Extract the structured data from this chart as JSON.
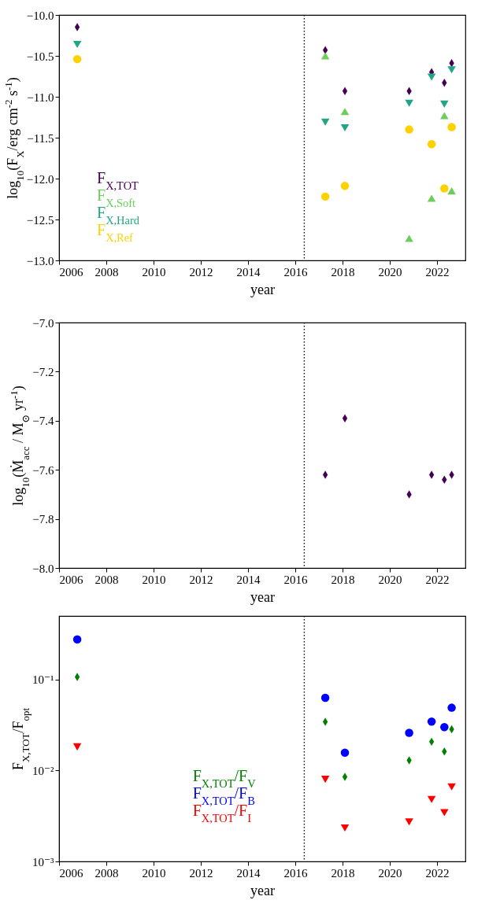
{
  "chart_data": [
    {
      "type": "scatter",
      "xlabel": "year",
      "ylabel": "log$_{10}$(F$_{X}$/erg cm$^{-2}$ s$^{-1}$)",
      "xlim": [
        2006,
        2023.2
      ],
      "ylim": [
        -13,
        -10
      ],
      "xticks": [
        2006,
        2008,
        2010,
        2012,
        2014,
        2016,
        2018,
        2020,
        2022
      ],
      "yticks": [
        {
          "value": -13,
          "label": "−13.0"
        },
        {
          "value": -12.5,
          "label": "−12.5"
        },
        {
          "value": -12,
          "label": "−12.0"
        },
        {
          "value": -11.5,
          "label": "−11.5"
        },
        {
          "value": -11,
          "label": "−11.0"
        },
        {
          "value": -10.5,
          "label": "−10.5"
        },
        {
          "value": -10,
          "label": "−10.0"
        }
      ],
      "legend": "bottom left",
      "ref_lines": [
        {
          "axis": "x",
          "value": 2016.38,
          "color": "#000000",
          "line_style": "dotted"
        }
      ],
      "series": [
        {
          "name": "F$_{X,TOT}$",
          "color": "#440154",
          "marker": "diamond",
          "x": [
            2006.77,
            2017.27,
            2018.1,
            2020.82,
            2021.77,
            2022.31,
            2022.62
          ],
          "values": [
            -10.15,
            -10.43,
            -10.93,
            -10.93,
            -10.7,
            -10.83,
            -10.59
          ]
        },
        {
          "name": "F$_{X,Soft}$",
          "color": "#6ccd5a",
          "marker": "triangle-up",
          "x": [
            2017.27,
            2018.1,
            2020.82,
            2021.77,
            2022.31,
            2022.62
          ],
          "values": [
            -10.5,
            -11.18,
            -12.73,
            -12.24,
            -11.23,
            -12.15
          ]
        },
        {
          "name": "F$_{X,Hard}$",
          "color": "#21a585",
          "marker": "triangle-down",
          "x": [
            2006.77,
            2017.27,
            2018.1,
            2020.82,
            2021.77,
            2022.31,
            2022.62
          ],
          "values": [
            -10.36,
            -11.31,
            -11.38,
            -11.08,
            -10.76,
            -11.09,
            -10.67
          ]
        },
        {
          "name": "F$_{X,Ref}$",
          "color": "#fed100",
          "marker": "circle",
          "x": [
            2006.77,
            2017.27,
            2018.1,
            2020.82,
            2021.77,
            2022.31,
            2022.62
          ],
          "values": [
            -10.54,
            -12.22,
            -12.09,
            -11.4,
            -11.58,
            -12.12,
            -11.37
          ]
        }
      ]
    },
    {
      "type": "scatter",
      "xlabel": "year",
      "ylabel": "log$_{10}$(Ṁ$_{acc}$ / M$_{⊙}$ yr$^{-1}$)",
      "xlim": [
        2006,
        2023.2
      ],
      "ylim": [
        -8,
        -7
      ],
      "xticks": [
        2006,
        2008,
        2010,
        2012,
        2014,
        2016,
        2018,
        2020,
        2022
      ],
      "yticks": [
        {
          "value": -8,
          "label": "−8.0"
        },
        {
          "value": -7.8,
          "label": "−7.8"
        },
        {
          "value": -7.6,
          "label": "−7.6"
        },
        {
          "value": -7.4,
          "label": "−7.4"
        },
        {
          "value": -7.2,
          "label": "−7.2"
        },
        {
          "value": -7,
          "label": "−7.0"
        }
      ],
      "ref_lines": [
        {
          "axis": "x",
          "value": 2016.38,
          "color": "#000000",
          "line_style": "dotted"
        }
      ],
      "series": [
        {
          "color": "#440154",
          "marker": "diamond",
          "x": [
            2017.27,
            2018.1,
            2020.82,
            2021.77,
            2022.31,
            2022.62
          ],
          "values": [
            -7.62,
            -7.39,
            -7.7,
            -7.62,
            -7.64,
            -7.62
          ]
        }
      ]
    },
    {
      "type": "scatter",
      "xlabel": "year",
      "ylabel": "F$_{X,TOT}$/F$_{opt}$",
      "log": "y",
      "xlim": [
        2006,
        2023.2
      ],
      "ylim": [
        0.001,
        0.5
      ],
      "xticks": [
        2006,
        2008,
        2010,
        2012,
        2014,
        2016,
        2018,
        2020,
        2022
      ],
      "yticks": [
        {
          "value": 0.001,
          "label": "10⁻³"
        },
        {
          "value": 0.01,
          "label": "10⁻²"
        },
        {
          "value": 0.1,
          "label": "10⁻¹"
        }
      ],
      "legend": "bottom",
      "ref_lines": [
        {
          "axis": "x",
          "value": 2016.38,
          "color": "#000000",
          "line_style": "dotted"
        }
      ],
      "series": [
        {
          "name": "F$_{X,TOT}$/F$_{V}$",
          "color": "#008000",
          "marker": "diamond",
          "x": [
            2006.77,
            2017.27,
            2018.1,
            2020.82,
            2021.77,
            2022.31,
            2022.62
          ],
          "values": [
            0.107,
            0.0343,
            0.0085,
            0.0129,
            0.0207,
            0.0162,
            0.0284
          ]
        },
        {
          "name": "F$_{X,TOT}$/F$_{B}$",
          "color": "#0000ff",
          "marker": "circle",
          "x": [
            2006.77,
            2017.27,
            2018.1,
            2020.82,
            2021.77,
            2022.31,
            2022.62
          ],
          "values": [
            0.276,
            0.063,
            0.0157,
            0.026,
            0.0345,
            0.03,
            0.049
          ]
        },
        {
          "name": "F$_{X,TOT}$/F$_{I}$",
          "color": "#ff0000",
          "marker": "triangle-down",
          "x": [
            2006.77,
            2017.27,
            2018.1,
            2020.82,
            2021.77,
            2022.31,
            2022.62
          ],
          "values": [
            0.0182,
            0.008,
            0.00233,
            0.00272,
            0.0048,
            0.00344,
            0.0066
          ]
        }
      ]
    }
  ]
}
